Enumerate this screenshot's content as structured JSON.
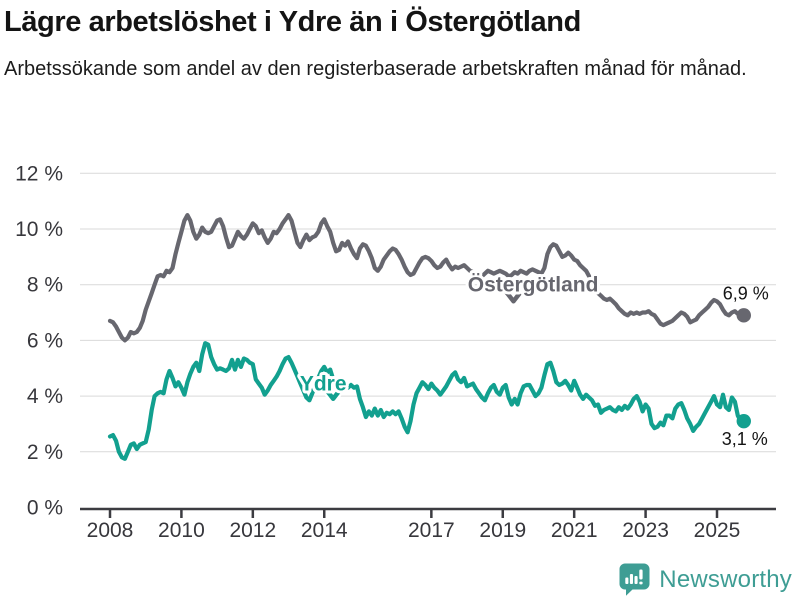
{
  "header": {
    "title": "Lägre arbetslöshet i Ydre än i Östergötland",
    "subtitle": "Arbetssökande som andel av den registerbaserade arbetskraften månad för månad."
  },
  "footer": {
    "brand": "Newsworthy",
    "logo_icon": "bar-chart-speech-bubble-icon",
    "brand_color": "#3e9d94"
  },
  "chart_data": {
    "type": "line",
    "title": "Lägre arbetslöshet i Ydre än i Östergötland",
    "subtitle": "Arbetssökande som andel av den registerbaserade arbetskraften månad för månad.",
    "unit": "%",
    "frequency": "monthly",
    "start": "2008-01",
    "end": "2025-10",
    "grid": true,
    "legend_position": "inline-labels",
    "ylim": [
      0,
      12
    ],
    "y_ticks": [
      0,
      2,
      4,
      6,
      8,
      10,
      12
    ],
    "y_tick_suffix": " %",
    "x_ticks": [
      2008,
      2010,
      2012,
      2014,
      2017,
      2019,
      2021,
      2023,
      2025
    ],
    "series": [
      {
        "name": "Östergötland",
        "color": "#67676f",
        "last_value": 6.9,
        "end_label": "6,9 %",
        "end_label_offset": [
          2,
          -16
        ],
        "label": {
          "x": 2019.85,
          "y": 8.0
        },
        "caret": {
          "x": 2019.3,
          "y": 7.55
        },
        "values": [
          6.7,
          6.65,
          6.5,
          6.3,
          6.1,
          6.0,
          6.1,
          6.3,
          6.25,
          6.3,
          6.45,
          6.7,
          7.1,
          7.4,
          7.7,
          8.0,
          8.3,
          8.35,
          8.3,
          8.5,
          8.45,
          8.6,
          9.1,
          9.5,
          9.9,
          10.3,
          10.5,
          10.3,
          9.9,
          9.65,
          9.8,
          10.05,
          9.9,
          9.85,
          9.9,
          10.1,
          10.3,
          10.35,
          10.1,
          9.7,
          9.35,
          9.4,
          9.65,
          9.9,
          9.75,
          9.65,
          9.8,
          10.0,
          10.2,
          10.1,
          9.85,
          9.95,
          9.7,
          9.5,
          9.65,
          9.9,
          9.85,
          10.0,
          10.2,
          10.35,
          10.5,
          10.3,
          9.9,
          9.5,
          9.35,
          9.6,
          9.8,
          9.6,
          9.7,
          9.75,
          9.9,
          10.2,
          10.35,
          10.1,
          9.9,
          9.5,
          9.2,
          9.25,
          9.5,
          9.4,
          9.55,
          9.3,
          9.1,
          8.95,
          9.3,
          9.45,
          9.4,
          9.2,
          8.95,
          8.6,
          8.5,
          8.65,
          8.9,
          9.05,
          9.2,
          9.3,
          9.25,
          9.1,
          8.9,
          8.65,
          8.45,
          8.35,
          8.4,
          8.6,
          8.8,
          8.95,
          9.0,
          8.95,
          8.85,
          8.7,
          8.6,
          8.65,
          8.8,
          8.9,
          8.7,
          8.55,
          8.65,
          8.6,
          8.65,
          8.7,
          8.6,
          8.5,
          8.45,
          8.4,
          8.35,
          8.3,
          8.4,
          8.5,
          8.45,
          8.4,
          8.45,
          8.5,
          8.45,
          8.4,
          8.3,
          8.35,
          8.45,
          8.4,
          8.5,
          8.45,
          8.4,
          8.5,
          8.55,
          8.5,
          8.45,
          8.4,
          8.6,
          9.1,
          9.35,
          9.45,
          9.4,
          9.2,
          9.0,
          9.05,
          9.15,
          9.05,
          8.9,
          8.85,
          8.7,
          8.6,
          8.5,
          8.3,
          8.1,
          7.9,
          7.7,
          7.6,
          7.5,
          7.45,
          7.5,
          7.4,
          7.3,
          7.15,
          7.05,
          6.95,
          6.9,
          7.0,
          6.95,
          7.0,
          6.95,
          7.0,
          7.0,
          7.05,
          6.95,
          6.9,
          6.75,
          6.6,
          6.55,
          6.6,
          6.65,
          6.7,
          6.8,
          6.9,
          7.0,
          6.95,
          6.85,
          6.65,
          6.7,
          6.75,
          6.9,
          7.0,
          7.1,
          7.2,
          7.35,
          7.45,
          7.4,
          7.3,
          7.1,
          6.95,
          6.9,
          7.0,
          7.05,
          6.95,
          6.9,
          6.9
        ]
      },
      {
        "name": "Ydre",
        "color": "#12a08f",
        "last_value": 3.1,
        "end_label": "3,1 %",
        "end_label_offset": [
          1,
          24
        ],
        "label": {
          "x": 2013.97,
          "y": 4.45
        },
        "caret": {
          "x": 2014.25,
          "y": 4.05
        },
        "values": [
          2.55,
          2.6,
          2.4,
          2.0,
          1.8,
          1.75,
          2.0,
          2.25,
          2.3,
          2.1,
          2.25,
          2.3,
          2.35,
          2.8,
          3.5,
          4.0,
          4.1,
          4.15,
          4.1,
          4.6,
          4.9,
          4.65,
          4.35,
          4.5,
          4.3,
          4.05,
          4.5,
          4.8,
          5.05,
          5.2,
          4.9,
          5.5,
          5.9,
          5.85,
          5.4,
          5.15,
          4.95,
          5.0,
          4.95,
          4.9,
          5.0,
          5.3,
          4.95,
          5.3,
          5.05,
          5.35,
          5.3,
          5.2,
          5.15,
          4.6,
          4.45,
          4.3,
          4.05,
          4.2,
          4.4,
          4.55,
          4.7,
          4.9,
          5.15,
          5.35,
          5.4,
          5.2,
          4.95,
          4.7,
          4.45,
          4.2,
          3.95,
          3.85,
          4.1,
          4.4,
          4.65,
          4.9,
          5.05,
          4.85,
          4.95,
          4.6,
          4.4,
          4.3,
          4.35,
          4.45,
          4.3,
          4.4,
          4.3,
          4.35,
          3.9,
          3.6,
          3.25,
          3.45,
          3.3,
          3.55,
          3.3,
          3.5,
          3.25,
          3.4,
          3.35,
          3.45,
          3.35,
          3.45,
          3.2,
          2.9,
          2.7,
          3.1,
          3.7,
          4.1,
          4.3,
          4.5,
          4.4,
          4.25,
          4.45,
          4.3,
          4.2,
          4.05,
          4.2,
          4.35,
          4.55,
          4.75,
          4.85,
          4.6,
          4.5,
          4.65,
          4.35,
          4.4,
          4.45,
          4.25,
          4.1,
          3.95,
          3.85,
          4.1,
          4.3,
          4.4,
          4.15,
          4.05,
          4.3,
          4.4,
          3.95,
          3.7,
          3.9,
          3.7,
          4.1,
          4.35,
          4.4,
          4.4,
          4.2,
          4.0,
          4.1,
          4.3,
          4.75,
          5.15,
          5.2,
          4.9,
          4.5,
          4.4,
          4.45,
          4.55,
          4.4,
          4.2,
          4.55,
          4.3,
          4.05,
          3.9,
          4.05,
          3.95,
          3.85,
          3.65,
          3.7,
          3.4,
          3.5,
          3.55,
          3.6,
          3.5,
          3.45,
          3.6,
          3.5,
          3.65,
          3.55,
          3.7,
          3.9,
          4.0,
          3.8,
          3.45,
          3.7,
          3.55,
          3.0,
          2.85,
          2.9,
          3.05,
          2.95,
          3.3,
          3.3,
          3.2,
          3.55,
          3.7,
          3.75,
          3.5,
          3.2,
          3.0,
          2.75,
          2.9,
          3.0,
          3.2,
          3.4,
          3.6,
          3.8,
          4.0,
          3.7,
          3.6,
          4.05,
          3.6,
          3.5,
          3.95,
          3.8,
          3.3,
          3.1,
          3.1
        ]
      }
    ]
  }
}
